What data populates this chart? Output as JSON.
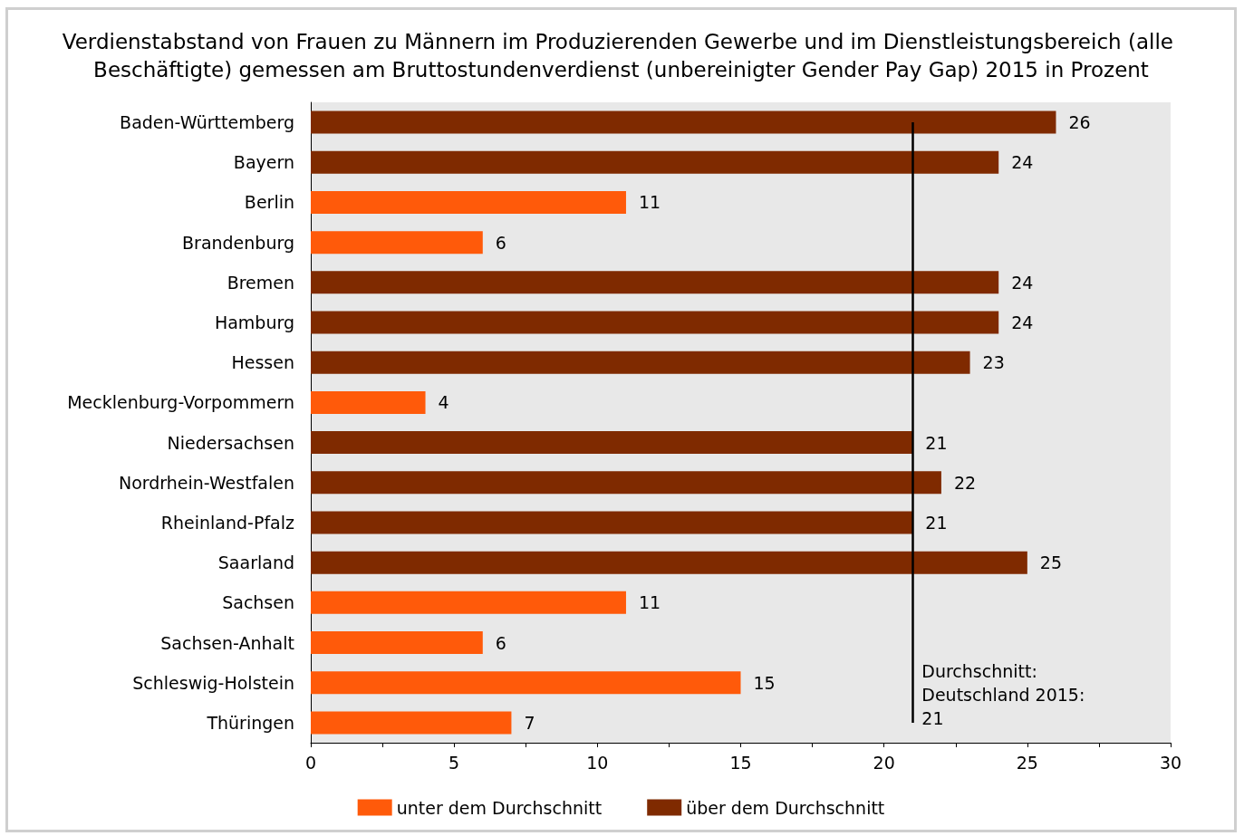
{
  "chart_data": {
    "type": "bar",
    "orientation": "horizontal",
    "stacked": true,
    "title": "Verdienstabstand von Frauen zu Männern im Produzierenden Gewerbe und im Dienstleistungsbereich (alle Beschäftigte) gemessen am Bruttostundenverdienst (unbereinigter Gender Pay Gap) 2015 in Prozent",
    "categories": [
      "Baden-Württemberg",
      "Bayern",
      "Berlin",
      "Brandenburg",
      "Bremen",
      "Hamburg",
      "Hessen",
      "Mecklenburg-Vorpommern",
      "Niedersachsen",
      "Nordrhein-Westfalen",
      "Rheinland-Pfalz",
      "Saarland",
      "Sachsen",
      "Sachsen-Anhalt",
      "Schleswig-Holstein",
      "Thüringen"
    ],
    "series": [
      {
        "name": "unter dem Durchschnitt",
        "color": "#ff5a0a",
        "values": [
          null,
          null,
          11,
          6,
          null,
          null,
          null,
          4,
          null,
          null,
          null,
          null,
          11,
          6,
          15,
          7
        ]
      },
      {
        "name": "über dem Durchschnitt",
        "color": "#7f2a00",
        "values": [
          26,
          24,
          null,
          null,
          24,
          24,
          23,
          null,
          21,
          22,
          21,
          25,
          null,
          null,
          null,
          null
        ]
      }
    ],
    "xlim": [
      0,
      30
    ],
    "xticks": [
      0,
      {
        "value": 2.5,
        "label": null
      },
      5,
      {
        "value": 7.5,
        "label": null
      },
      10,
      {
        "value": 12.5,
        "label": null
      },
      15,
      {
        "value": 17.5,
        "label": null
      },
      20,
      {
        "value": 22.5,
        "label": null
      },
      25,
      {
        "value": 27.5,
        "label": null
      },
      30
    ],
    "ref_lines": [
      {
        "axis": "x",
        "value": 21,
        "label": "Durchschnitt: Deutschland 2015: 21",
        "color": "#000000"
      }
    ],
    "data_labels": true,
    "grid": false,
    "legend": "bottom"
  }
}
